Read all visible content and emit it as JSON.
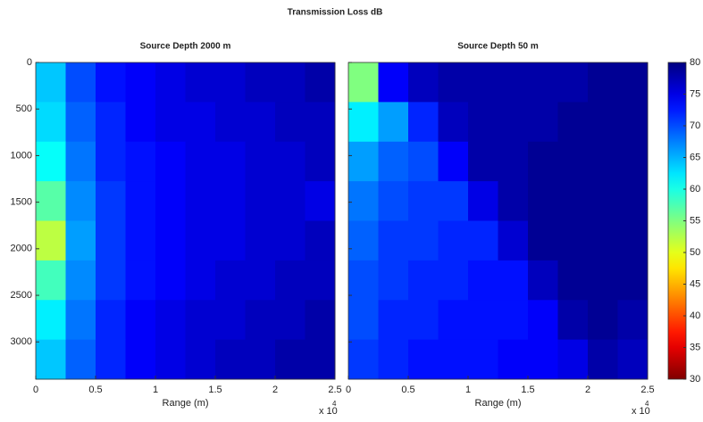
{
  "title": "Transmission Loss dB",
  "colorbar": {
    "clim": [
      30,
      80
    ],
    "ticks": [
      30,
      35,
      40,
      45,
      50,
      55,
      60,
      65,
      70,
      75,
      80
    ],
    "colormap": "jet",
    "reversed": true
  },
  "chart_data": [
    {
      "type": "heatmap",
      "title": "Source Depth 2000 m",
      "x_label": "Range (m)",
      "x_scale_label": "x 10",
      "x_scale_exponent": "4",
      "xlim": [
        0,
        2.5
      ],
      "xticks": [
        0,
        0.5,
        1,
        1.5,
        2,
        2.5
      ],
      "ylim": [
        0,
        3400
      ],
      "y_reversed": true,
      "yticks": [
        0,
        500,
        1000,
        1500,
        2000,
        2500,
        3000
      ],
      "yticklabels": true,
      "x": [
        0.125,
        0.375,
        0.625,
        0.875,
        1.125,
        1.375,
        1.625,
        1.875,
        2.125,
        2.375
      ],
      "y": [
        212.5,
        637.5,
        1062.5,
        1487.5,
        1912.5,
        2337.5,
        2762.5,
        3187.5
      ],
      "z": [
        [
          64,
          70,
          73,
          74,
          75,
          76,
          76,
          77,
          77,
          78
        ],
        [
          63,
          69,
          72,
          74,
          75,
          75,
          76,
          76,
          77,
          77
        ],
        [
          61,
          68,
          72,
          73,
          74,
          75,
          75,
          76,
          76,
          77
        ],
        [
          57,
          67,
          71,
          73,
          74,
          75,
          75,
          76,
          76,
          75
        ],
        [
          52,
          66,
          71,
          73,
          74,
          75,
          75,
          76,
          76,
          77
        ],
        [
          58,
          67,
          71,
          73,
          74,
          75,
          76,
          76,
          77,
          77
        ],
        [
          62,
          68,
          72,
          74,
          75,
          76,
          76,
          77,
          77,
          78
        ],
        [
          64,
          69,
          72,
          74,
          75,
          76,
          77,
          77,
          78,
          78
        ]
      ]
    },
    {
      "type": "heatmap",
      "title": "Source Depth 50 m",
      "x_label": "Range (m)",
      "x_scale_label": "x 10",
      "x_scale_exponent": "4",
      "xlim": [
        0,
        2.5
      ],
      "xticks": [
        0,
        0.5,
        1,
        1.5,
        2,
        2.5
      ],
      "ylim": [
        0,
        3400
      ],
      "y_reversed": true,
      "yticks": [
        0,
        500,
        1000,
        1500,
        2000,
        2500,
        3000
      ],
      "yticklabels": false,
      "x": [
        0.125,
        0.375,
        0.625,
        0.875,
        1.125,
        1.375,
        1.625,
        1.875,
        2.125,
        2.375
      ],
      "y": [
        212.5,
        637.5,
        1062.5,
        1487.5,
        1912.5,
        2337.5,
        2762.5,
        3187.5
      ],
      "z": [
        [
          55,
          74,
          77,
          78,
          78,
          78,
          78,
          78,
          79,
          79
        ],
        [
          62,
          66,
          72,
          77,
          78,
          78,
          78,
          79,
          79,
          79
        ],
        [
          66,
          69,
          70,
          74,
          78,
          78,
          79,
          79,
          79,
          79
        ],
        [
          68,
          70,
          71,
          71,
          75,
          78,
          79,
          79,
          79,
          79
        ],
        [
          69,
          71,
          71,
          72,
          72,
          76,
          79,
          79,
          79,
          79
        ],
        [
          70,
          71,
          72,
          72,
          73,
          73,
          77,
          79,
          79,
          79
        ],
        [
          70,
          72,
          72,
          73,
          73,
          73,
          74,
          78,
          79,
          78
        ],
        [
          71,
          72,
          73,
          73,
          73,
          74,
          74,
          75,
          78,
          77
        ]
      ]
    }
  ]
}
